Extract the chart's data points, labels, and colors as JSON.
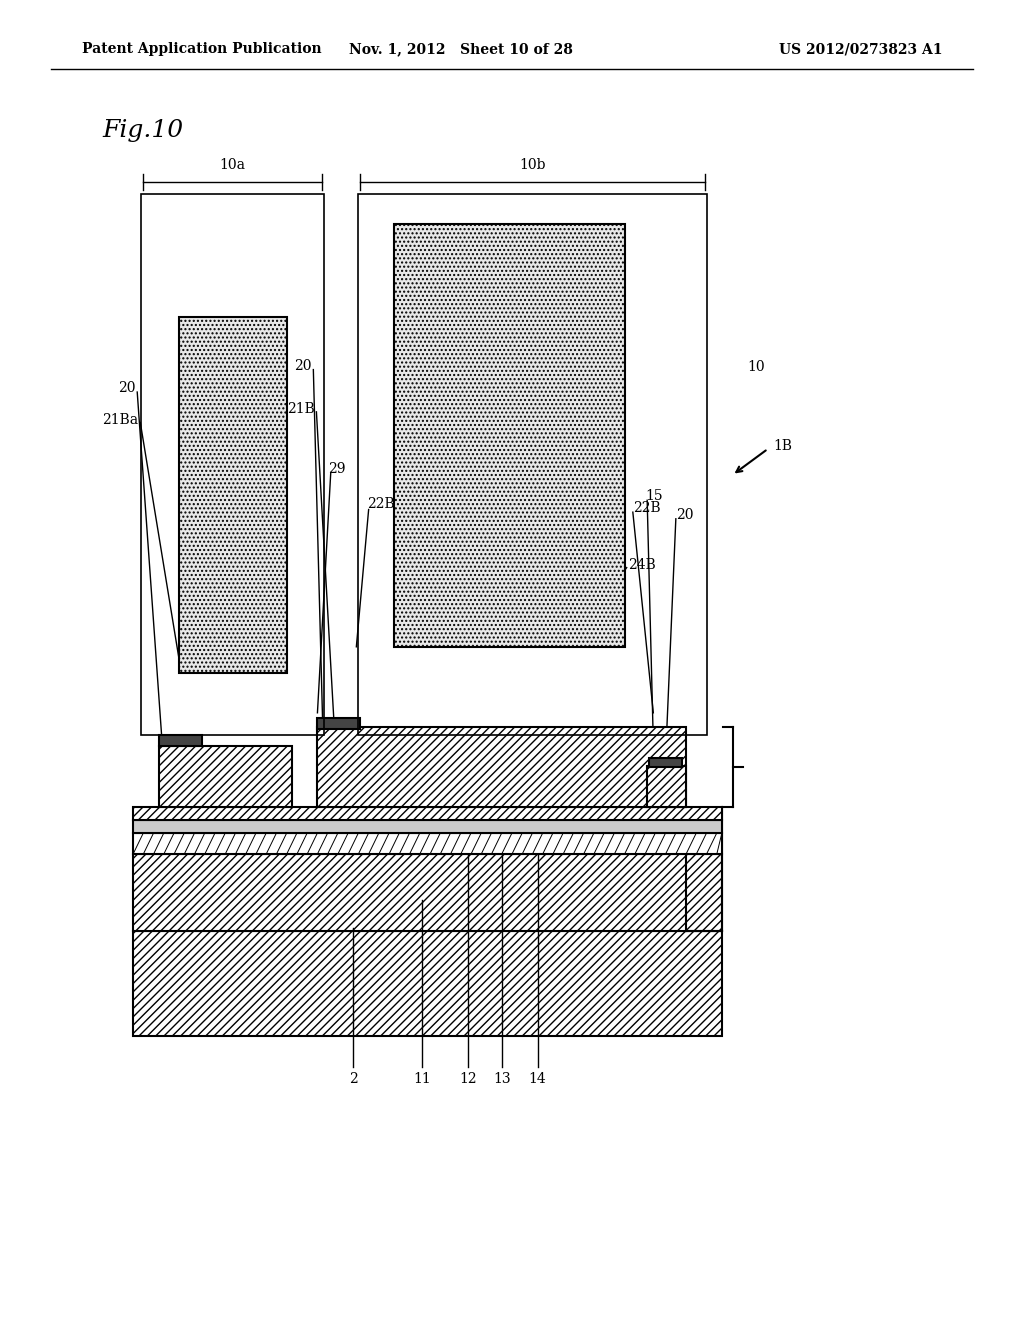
{
  "title": "Fig.10",
  "header_left": "Patent Application Publication",
  "header_mid": "Nov. 1, 2012   Sheet 10 of 28",
  "header_right": "US 2012/0273823 A1",
  "bg_color": "#ffffff",
  "line_color": "#000000",
  "dot_fill": "#e8e8e8"
}
